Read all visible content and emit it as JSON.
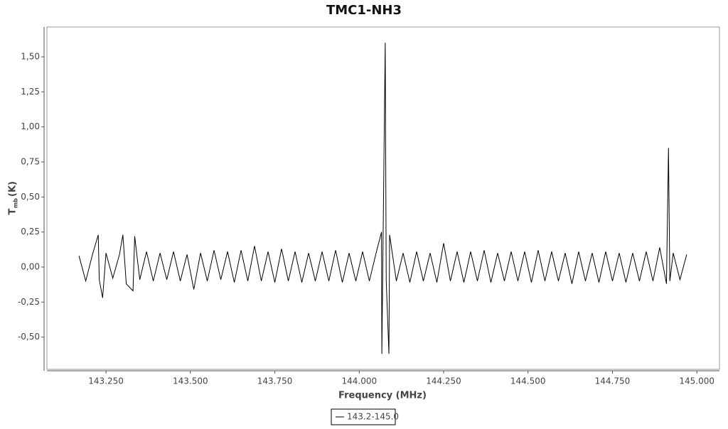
{
  "chart_data": {
    "type": "line",
    "title": "TMC1-NH3",
    "x_label": "Frequency (MHz)",
    "y_label": "T",
    "y_label_sub": "mb",
    "y_label_unit": "(K)",
    "x": [
      143.17,
      143.19,
      143.21,
      143.227,
      143.23,
      143.24,
      143.25,
      143.27,
      143.29,
      143.3,
      143.31,
      143.33,
      143.335,
      143.35,
      143.37,
      143.39,
      143.41,
      143.43,
      143.45,
      143.47,
      143.49,
      143.51,
      143.53,
      143.55,
      143.57,
      143.59,
      143.61,
      143.63,
      143.65,
      143.67,
      143.69,
      143.71,
      143.73,
      143.75,
      143.77,
      143.79,
      143.81,
      143.83,
      143.85,
      143.87,
      143.89,
      143.91,
      143.93,
      143.95,
      143.97,
      143.99,
      144.01,
      144.03,
      144.05,
      144.066,
      144.067,
      144.077,
      144.08,
      144.088,
      144.09,
      144.11,
      144.13,
      144.15,
      144.17,
      144.19,
      144.21,
      144.23,
      144.25,
      144.27,
      144.29,
      144.31,
      144.33,
      144.35,
      144.37,
      144.39,
      144.41,
      144.43,
      144.45,
      144.47,
      144.49,
      144.51,
      144.53,
      144.55,
      144.57,
      144.59,
      144.61,
      144.63,
      144.65,
      144.67,
      144.69,
      144.71,
      144.73,
      144.75,
      144.77,
      144.79,
      144.81,
      144.83,
      144.85,
      144.87,
      144.89,
      144.91,
      144.916,
      144.92,
      144.93,
      144.95,
      144.97
    ],
    "series": [
      {
        "name": "143.2-145.0",
        "color": "#000000",
        "values": [
          0.08,
          -0.1,
          0.09,
          0.23,
          -0.09,
          -0.22,
          0.1,
          -0.08,
          0.09,
          0.23,
          -0.12,
          -0.17,
          0.22,
          -0.09,
          0.11,
          -0.1,
          0.1,
          -0.09,
          0.11,
          -0.1,
          0.09,
          -0.16,
          0.1,
          -0.1,
          0.12,
          -0.09,
          0.11,
          -0.11,
          0.12,
          -0.1,
          0.15,
          -0.1,
          0.11,
          -0.11,
          0.13,
          -0.1,
          0.11,
          -0.11,
          0.1,
          -0.1,
          0.11,
          -0.1,
          0.12,
          -0.11,
          0.1,
          -0.1,
          0.11,
          -0.1,
          0.1,
          0.25,
          -0.62,
          1.6,
          -0.1,
          -0.62,
          0.23,
          -0.1,
          0.1,
          -0.11,
          0.11,
          -0.1,
          0.1,
          -0.11,
          0.17,
          -0.1,
          0.11,
          -0.11,
          0.11,
          -0.1,
          0.12,
          -0.11,
          0.1,
          -0.1,
          0.11,
          -0.1,
          0.11,
          -0.11,
          0.12,
          -0.1,
          0.11,
          -0.1,
          0.1,
          -0.12,
          0.11,
          -0.1,
          0.1,
          -0.11,
          0.11,
          -0.1,
          0.1,
          -0.11,
          0.1,
          -0.1,
          0.11,
          -0.1,
          0.14,
          -0.12,
          0.85,
          -0.1,
          0.1,
          -0.09,
          0.09
        ]
      }
    ],
    "xlim": [
      143.075,
      145.067
    ],
    "ylim": [
      -0.73,
      1.713
    ],
    "xticks": [
      {
        "value": 143.25,
        "label": "143.250"
      },
      {
        "value": 143.5,
        "label": "143.500"
      },
      {
        "value": 143.75,
        "label": "143.750"
      },
      {
        "value": 144,
        "label": "144.000"
      },
      {
        "value": 144.25,
        "label": "144.250"
      },
      {
        "value": 144.5,
        "label": "144.500"
      },
      {
        "value": 144.75,
        "label": "144.750"
      },
      {
        "value": 145,
        "label": "145.000"
      }
    ],
    "yticks": [
      {
        "value": -0.5,
        "label": "-0,50"
      },
      {
        "value": -0.25,
        "label": "-0,25"
      },
      {
        "value": 0,
        "label": "0,00"
      },
      {
        "value": 0.25,
        "label": "0,25"
      },
      {
        "value": 0.5,
        "label": "0,50"
      },
      {
        "value": 0.75,
        "label": "0,75"
      },
      {
        "value": 1,
        "label": "1,00"
      },
      {
        "value": 1.25,
        "label": "1,25"
      },
      {
        "value": 1.5,
        "label": "1,50"
      }
    ],
    "grid": false,
    "legend": "bottom"
  }
}
